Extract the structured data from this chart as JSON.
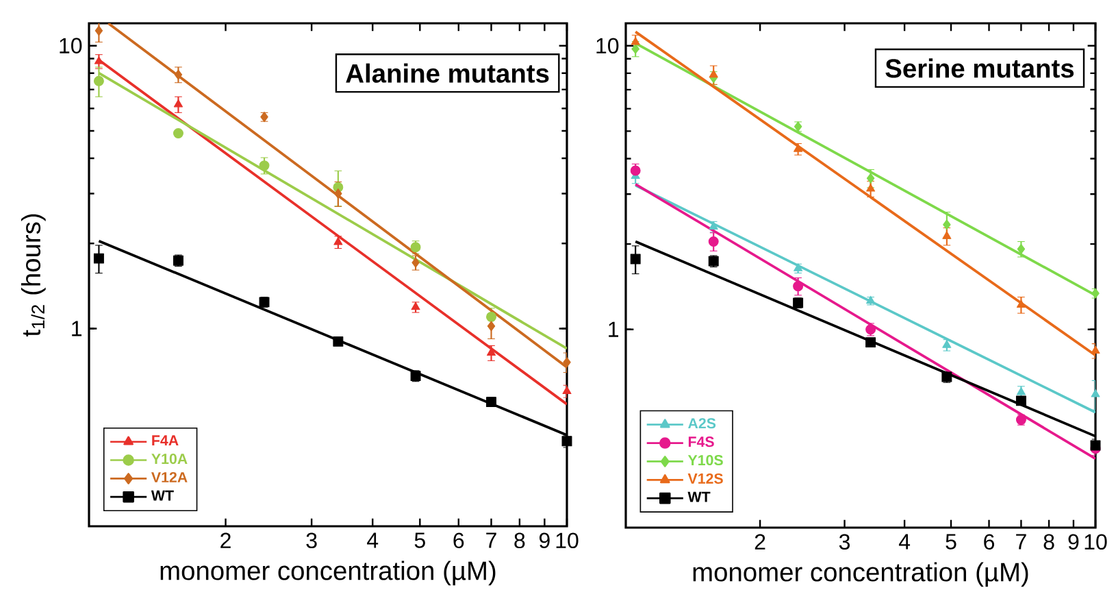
{
  "chart_data": [
    {
      "type": "scatter",
      "title": "Alanine mutants",
      "xlabel": "monomer concentration (µM)",
      "ylabel": "t$_{1/2}$ (hours)",
      "log": "xy",
      "legend": "bottom left",
      "xlim": [
        1.05,
        10
      ],
      "ylim": [
        0.2,
        12
      ],
      "xticks": [
        2,
        3,
        4,
        5,
        6,
        7,
        8,
        9,
        10
      ],
      "yticks": [
        1,
        10
      ],
      "x": [
        1.1,
        1.6,
        2.4,
        3.4,
        4.9,
        7,
        10
      ],
      "series": [
        {
          "name": "F4A",
          "color": "#e8302a",
          "marker": "triangle",
          "values": [
            8.8,
            6.2,
            null,
            2.02,
            1.19,
            0.82,
            0.6
          ],
          "errors": [
            0.5,
            0.4,
            null,
            0.1,
            0.05,
            0.05,
            0.03
          ]
        },
        {
          "name": "Y10A",
          "color": "#9ccc4a",
          "marker": "circle",
          "values": [
            7.5,
            4.9,
            3.77,
            3.16,
            1.94,
            1.1,
            null
          ],
          "errors": [
            0.9,
            null,
            0.25,
            0.45,
            0.1,
            0.08,
            null
          ]
        },
        {
          "name": "V12A",
          "color": "#cc6a20",
          "marker": "diamond",
          "values": [
            11.3,
            7.9,
            5.6,
            3.0,
            1.71,
            1.02,
            0.76
          ],
          "errors": [
            1.0,
            0.5,
            0.2,
            0.3,
            0.1,
            0.1,
            0.06
          ]
        },
        {
          "name": "WT",
          "color": "#000000",
          "marker": "square",
          "values": [
            1.77,
            1.74,
            1.24,
            0.9,
            0.68,
            0.55,
            0.4
          ],
          "errors": [
            0.2,
            0.08,
            0.05,
            0.03,
            0.03,
            0.02,
            0.02
          ]
        },
        {
          "type": "line",
          "color": "#e8302a",
          "x": [
            1.1,
            10
          ],
          "values": [
            8.9,
            0.54
          ]
        },
        {
          "type": "line",
          "color": "#9ccc4a",
          "x": [
            1.1,
            10
          ],
          "values": [
            8.0,
            0.85
          ]
        },
        {
          "type": "line",
          "color": "#cc6a20",
          "x": [
            1.15,
            10
          ],
          "values": [
            12,
            0.73
          ]
        },
        {
          "type": "line",
          "color": "#000000",
          "x": [
            1.1,
            10
          ],
          "values": [
            2.04,
            0.42
          ]
        }
      ]
    },
    {
      "type": "scatter",
      "title": "Serine mutants",
      "xlabel": "monomer concentration (µM)",
      "log": "xy",
      "legend": "bottom left",
      "xlim": [
        1.05,
        10
      ],
      "ylim": [
        0.2,
        12
      ],
      "xticks": [
        2,
        3,
        4,
        5,
        6,
        7,
        8,
        9,
        10
      ],
      "yticks": [
        1,
        10
      ],
      "x": [
        1.1,
        1.6,
        2.4,
        3.4,
        4.9,
        7,
        10
      ],
      "series": [
        {
          "name": "A2S",
          "color": "#5bc8c8",
          "marker": "triangle",
          "values": [
            3.47,
            2.3,
            1.64,
            1.26,
            0.88,
            0.6,
            0.59
          ],
          "errors": [
            0.2,
            0.1,
            0.06,
            0.04,
            0.04,
            0.03,
            0.07
          ]
        },
        {
          "name": "F4S",
          "color": "#e6198c",
          "marker": "circle",
          "values": [
            3.63,
            2.04,
            1.42,
            1.0,
            null,
            0.48,
            0.38
          ],
          "errors": [
            0.2,
            0.15,
            0.1,
            0.05,
            null,
            0.02,
            0.02
          ]
        },
        {
          "name": "Y10S",
          "color": "#7ed94a",
          "marker": "diamond",
          "values": [
            9.75,
            7.7,
            5.19,
            3.41,
            2.34,
            1.92,
            1.34
          ],
          "errors": [
            0.6,
            0.4,
            0.2,
            0.25,
            0.25,
            0.12,
            0.05
          ]
        },
        {
          "name": "V12S",
          "color": "#e86a1a",
          "marker": "triangle",
          "values": [
            10.3,
            7.9,
            4.32,
            3.13,
            2.13,
            1.22,
            0.84
          ],
          "errors": [
            0.6,
            0.6,
            0.2,
            0.2,
            0.15,
            0.08,
            0.05
          ]
        },
        {
          "name": "WT",
          "color": "#000000",
          "marker": "square",
          "values": [
            1.77,
            1.74,
            1.24,
            0.9,
            0.68,
            0.56,
            0.39
          ],
          "errors": [
            0.2,
            0.08,
            0.05,
            0.03,
            0.03,
            0.02,
            0.02
          ]
        },
        {
          "type": "line",
          "color": "#5bc8c8",
          "x": [
            1.1,
            10
          ],
          "values": [
            3.22,
            0.51
          ]
        },
        {
          "type": "line",
          "color": "#e6198c",
          "x": [
            1.1,
            10
          ],
          "values": [
            3.25,
            0.35
          ]
        },
        {
          "type": "line",
          "color": "#7ed94a",
          "x": [
            1.1,
            10
          ],
          "values": [
            10.2,
            1.32
          ]
        },
        {
          "type": "line",
          "color": "#e86a1a",
          "x": [
            1.1,
            10
          ],
          "values": [
            11.2,
            0.81
          ]
        },
        {
          "type": "line",
          "color": "#000000",
          "x": [
            1.1,
            10
          ],
          "values": [
            2.04,
            0.42
          ]
        }
      ]
    }
  ]
}
